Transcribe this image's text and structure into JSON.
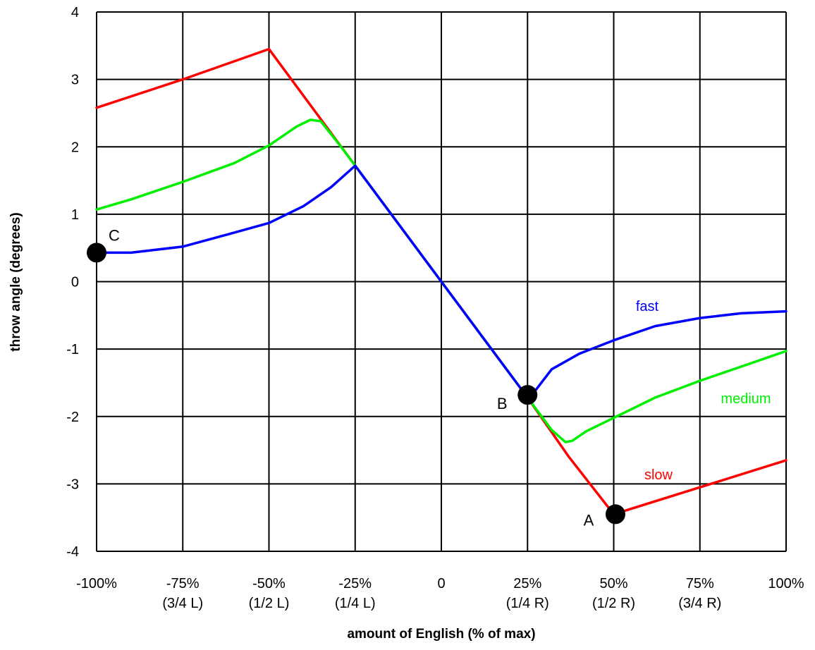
{
  "chart_data": {
    "type": "line",
    "xlabel": "amount of English (% of max)",
    "ylabel": "throw angle (degrees)",
    "xlim": [
      -100,
      100
    ],
    "ylim": [
      -4,
      4
    ],
    "grid": true,
    "x_ticks": [
      {
        "value": -100,
        "label": "-100%",
        "sublabel": ""
      },
      {
        "value": -75,
        "label": "-75%",
        "sublabel": "(3/4 L)"
      },
      {
        "value": -50,
        "label": "-50%",
        "sublabel": "(1/2 L)"
      },
      {
        "value": -25,
        "label": "-25%",
        "sublabel": "(1/4 L)"
      },
      {
        "value": 0,
        "label": "0",
        "sublabel": ""
      },
      {
        "value": 25,
        "label": "25%",
        "sublabel": "(1/4 R)"
      },
      {
        "value": 50,
        "label": "50%",
        "sublabel": "(1/2 R)"
      },
      {
        "value": 75,
        "label": "75%",
        "sublabel": "(3/4 R)"
      },
      {
        "value": 100,
        "label": "100%",
        "sublabel": ""
      }
    ],
    "y_ticks": [
      4,
      3,
      2,
      1,
      0,
      -1,
      -2,
      -3,
      -4
    ],
    "series": [
      {
        "name": "slow",
        "color": "#ff0000",
        "points": [
          [
            -100,
            2.58
          ],
          [
            -75,
            3.0
          ],
          [
            -50,
            3.45
          ],
          [
            -25,
            1.72
          ],
          [
            0,
            0
          ],
          [
            25,
            -1.72
          ],
          [
            37,
            -2.6
          ],
          [
            50,
            -3.45
          ],
          [
            75,
            -3.05
          ],
          [
            100,
            -2.65
          ]
        ]
      },
      {
        "name": "medium",
        "color": "#00ee00",
        "points": [
          [
            -100,
            1.07
          ],
          [
            -90,
            1.22
          ],
          [
            -75,
            1.48
          ],
          [
            -60,
            1.76
          ],
          [
            -50,
            2.02
          ],
          [
            -42,
            2.3
          ],
          [
            -38,
            2.4
          ],
          [
            -35,
            2.38
          ],
          [
            -30,
            2.06
          ],
          [
            -25,
            1.72
          ],
          [
            0,
            0
          ],
          [
            25,
            -1.72
          ],
          [
            32,
            -2.2
          ],
          [
            36,
            -2.38
          ],
          [
            38,
            -2.36
          ],
          [
            42,
            -2.22
          ],
          [
            50,
            -2.02
          ],
          [
            62,
            -1.72
          ],
          [
            75,
            -1.47
          ],
          [
            87,
            -1.26
          ],
          [
            100,
            -1.03
          ]
        ]
      },
      {
        "name": "fast",
        "color": "#0000ff",
        "points": [
          [
            -100,
            0.43
          ],
          [
            -90,
            0.43
          ],
          [
            -75,
            0.52
          ],
          [
            -62,
            0.7
          ],
          [
            -50,
            0.87
          ],
          [
            -40,
            1.12
          ],
          [
            -32,
            1.4
          ],
          [
            -25,
            1.72
          ],
          [
            0,
            0
          ],
          [
            25,
            -1.72
          ],
          [
            26,
            -1.7
          ],
          [
            32,
            -1.3
          ],
          [
            40,
            -1.07
          ],
          [
            50,
            -0.87
          ],
          [
            62,
            -0.66
          ],
          [
            75,
            -0.54
          ],
          [
            87,
            -0.47
          ],
          [
            100,
            -0.44
          ]
        ]
      }
    ],
    "markers": [
      {
        "label": "A",
        "x": 50.5,
        "y": -3.45
      },
      {
        "label": "B",
        "x": 25,
        "y": -1.68
      },
      {
        "label": "C",
        "x": -100,
        "y": 0.43
      }
    ]
  }
}
